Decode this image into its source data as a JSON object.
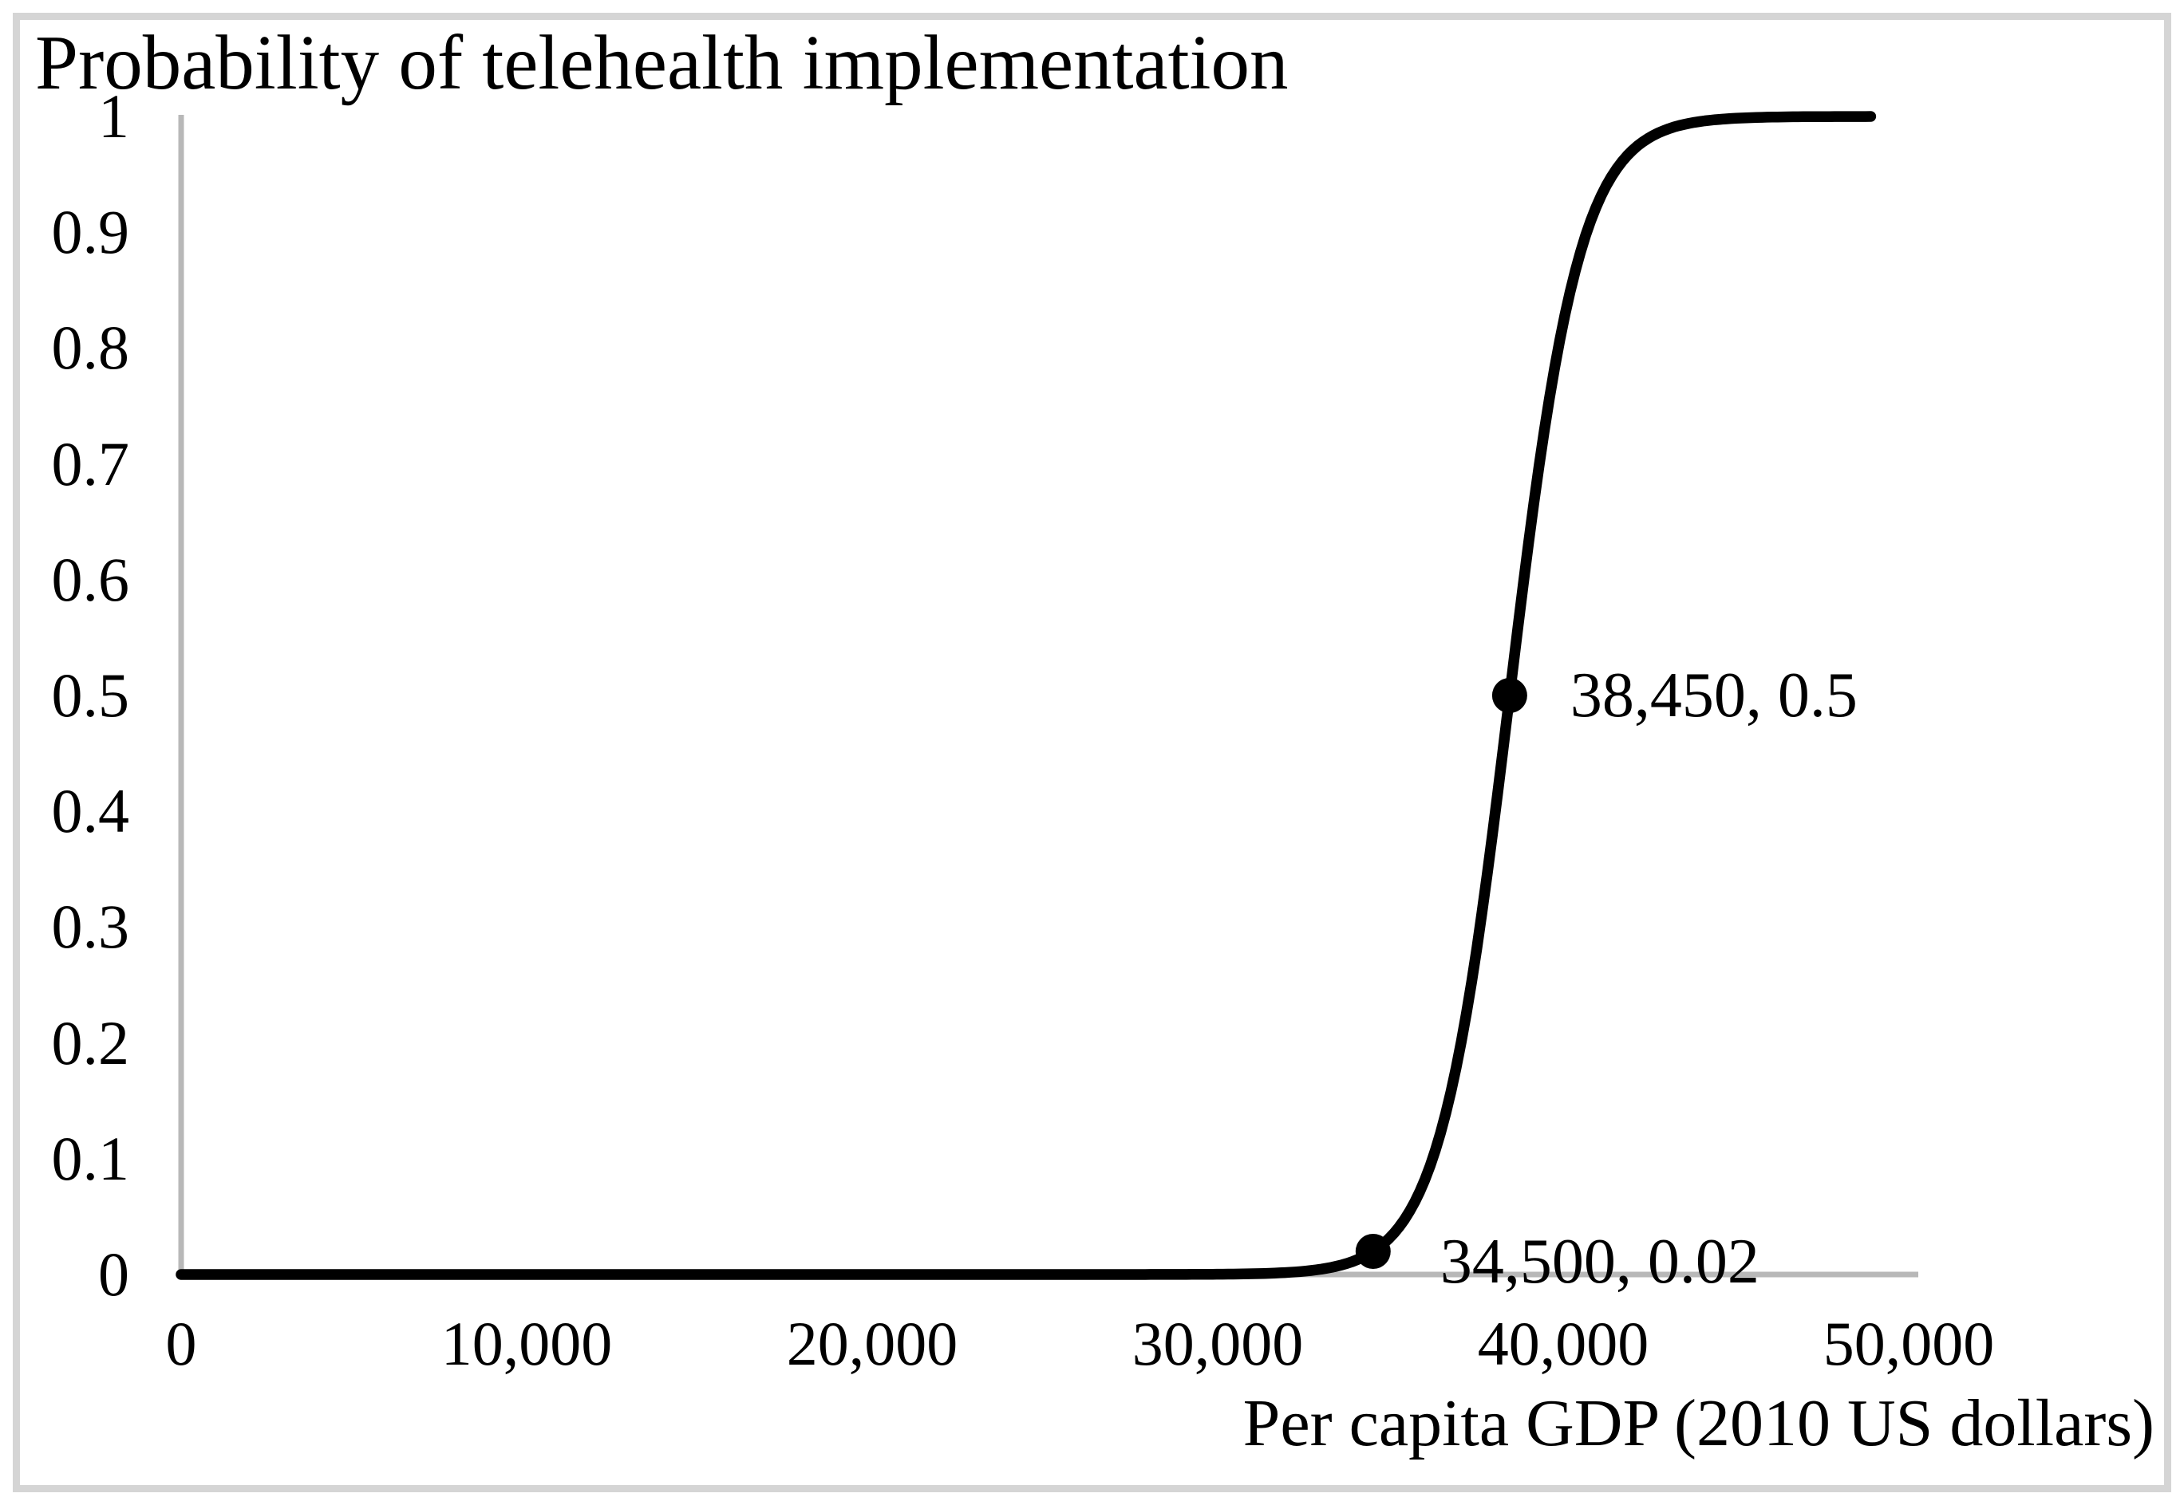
{
  "figure": {
    "background_color": "#ffffff",
    "border_color": "#d5d5d5"
  },
  "chart_data": {
    "type": "line",
    "title": "Probability of telehealth implementation",
    "xlabel": "Per capita GDP (2010 US dollars)",
    "ylabel": "",
    "xlim": [
      0,
      50000
    ],
    "ylim": [
      0,
      1
    ],
    "grid": false,
    "legend": null,
    "line_color": "#000000",
    "axis_color": "#b8b8b8",
    "x_ticks": [
      {
        "value": 0,
        "label": "0"
      },
      {
        "value": 10000,
        "label": "10,000"
      },
      {
        "value": 20000,
        "label": "20,000"
      },
      {
        "value": 30000,
        "label": "30,000"
      },
      {
        "value": 40000,
        "label": "40,000"
      },
      {
        "value": 50000,
        "label": "50,000"
      }
    ],
    "y_ticks": [
      {
        "value": 1,
        "label": "1"
      },
      {
        "value": 0.9,
        "label": "0.9"
      },
      {
        "value": 0.8,
        "label": "0.8"
      },
      {
        "value": 0.7,
        "label": "0.7"
      },
      {
        "value": 0.6,
        "label": "0.6"
      },
      {
        "value": 0.5,
        "label": "0.5"
      },
      {
        "value": 0.4,
        "label": "0.4"
      },
      {
        "value": 0.3,
        "label": "0.3"
      },
      {
        "value": 0.2,
        "label": "0.2"
      },
      {
        "value": 0.1,
        "label": "0.1"
      },
      {
        "value": 0,
        "label": "0"
      }
    ],
    "points": [
      {
        "x": 38450,
        "y": 0.5,
        "label": "38,450, 0.5"
      },
      {
        "x": 34500,
        "y": 0.02,
        "label": "34,500, 0.02"
      }
    ],
    "curve": {
      "model": "logistic",
      "midpoint_x": 38450,
      "k_per_unit": 0.00098527,
      "x_range_drawn": [
        0,
        48900
      ]
    }
  }
}
